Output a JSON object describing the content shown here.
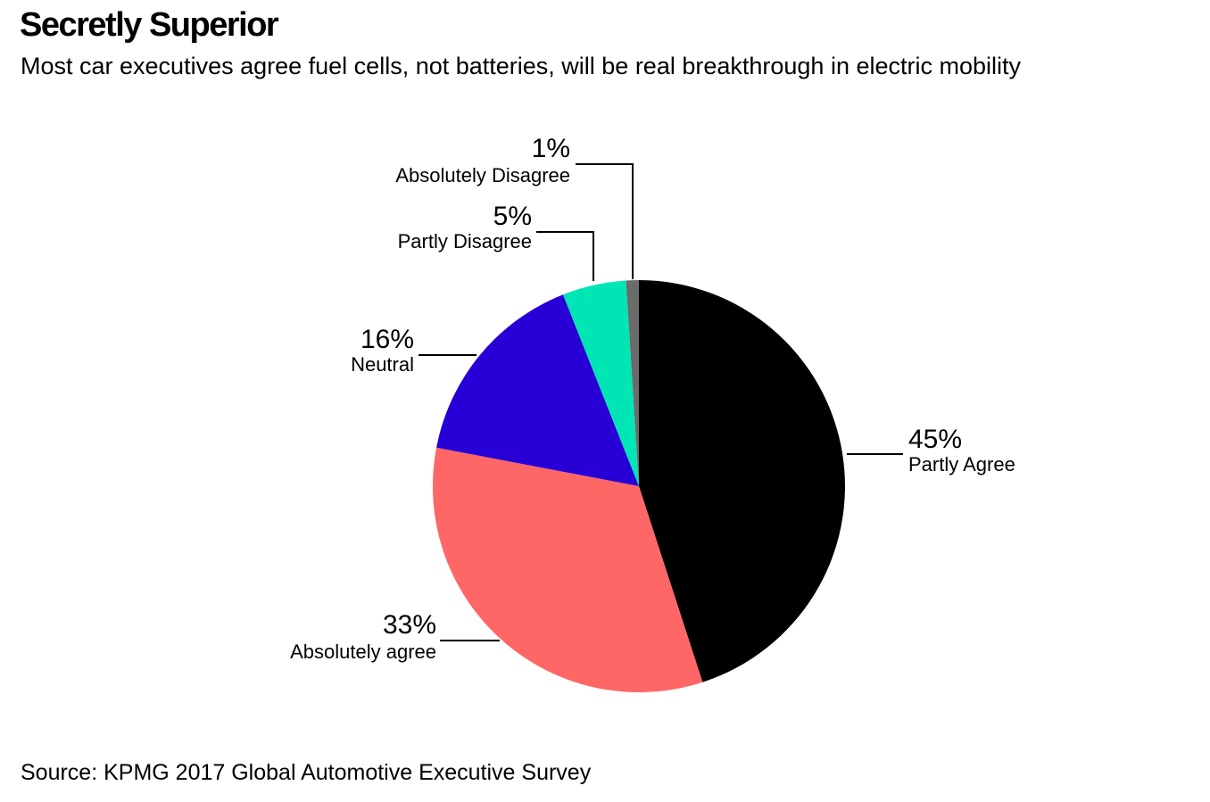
{
  "title": "Secretly Superior",
  "subtitle": "Most car executives agree fuel cells, not batteries, will be real breakthrough in electric mobility",
  "source": "Source: KPMG 2017 Global Automotive Executive Survey",
  "chart_data": {
    "type": "pie",
    "title": "Secretly Superior",
    "subtitle": "Most car executives agree fuel cells, not batteries, will be real breakthrough in electric mobility",
    "start": "12 o'clock",
    "direction": "clockwise",
    "slices": [
      {
        "label": "Partly Agree",
        "value": 45,
        "value_label": "45%",
        "color": "#000000"
      },
      {
        "label": "Absolutely agree",
        "value": 33,
        "value_label": "33%",
        "color": "#ff6666"
      },
      {
        "label": "Neutral",
        "value": 16,
        "value_label": "16%",
        "color": "#2800d7"
      },
      {
        "label": "Partly Disagree",
        "value": 5,
        "value_label": "5%",
        "color": "#00e5b4"
      },
      {
        "label": "Absolutely Disagree",
        "value": 1,
        "value_label": "1%",
        "color": "#6b6b6b"
      }
    ],
    "leader_line_color": "#000000"
  }
}
